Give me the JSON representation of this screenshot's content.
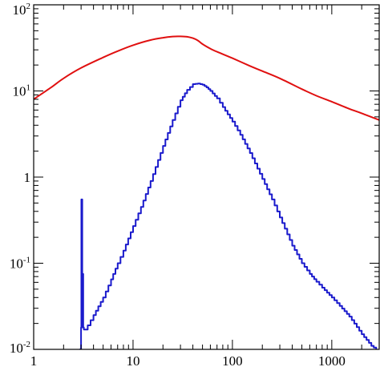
{
  "chart_data": {
    "type": "line",
    "title": "",
    "xlabel": "",
    "ylabel": "",
    "xscale": "log",
    "yscale": "log",
    "xlim": [
      1,
      3000
    ],
    "ylim": [
      0.01,
      100
    ],
    "grid": false,
    "legend": "none",
    "x_tick_labels": [
      {
        "value": 1,
        "label": "1"
      },
      {
        "value": 10,
        "label": "10"
      },
      {
        "value": 100,
        "label": "100"
      },
      {
        "value": 1000,
        "label": "1000"
      }
    ],
    "y_tick_labels": [
      {
        "value": 0.01,
        "base": "10",
        "exp": "-2"
      },
      {
        "value": 0.1,
        "base": "10",
        "exp": "-1"
      },
      {
        "value": 1,
        "base": "1",
        "exp": ""
      },
      {
        "value": 10,
        "base": "10",
        "exp": "1"
      },
      {
        "value": 100,
        "base": "10",
        "exp": "2"
      }
    ],
    "series": [
      {
        "color": "#e01010",
        "style": "smooth",
        "x": [
          1,
          1.5,
          2,
          3,
          5,
          7,
          10,
          15,
          20,
          25,
          30,
          35,
          40,
          45,
          50,
          60,
          70,
          100,
          150,
          200,
          300,
          500,
          700,
          1000,
          1500,
          2000,
          3000
        ],
        "y": [
          8,
          11,
          14,
          18.5,
          24.5,
          29,
          34,
          39,
          41.5,
          42.8,
          43,
          42.5,
          41,
          38.5,
          35,
          31,
          28.5,
          24,
          19.5,
          17,
          14,
          10.5,
          8.8,
          7.5,
          6.2,
          5.5,
          4.6
        ]
      },
      {
        "color": "#1a1acc",
        "style": "step",
        "x": [
          2.9,
          3.0,
          3.02,
          3.08,
          3.1,
          3.15,
          3.2,
          3.3,
          3.5,
          4,
          5,
          6,
          7,
          8,
          10,
          12,
          15,
          20,
          25,
          30,
          35,
          40,
          45,
          50,
          55,
          60,
          70,
          80,
          100,
          120,
          150,
          200,
          250,
          300,
          400,
          500,
          600,
          700,
          800,
          1000,
          1200,
          1500,
          2000,
          2500,
          2800
        ],
        "y": [
          0.01,
          0.018,
          0.55,
          0.018,
          0.075,
          0.018,
          0.017,
          0.017,
          0.019,
          0.025,
          0.04,
          0.065,
          0.1,
          0.14,
          0.27,
          0.45,
          0.9,
          2.3,
          4.6,
          7.8,
          10.3,
          12,
          12.2,
          11.8,
          11,
          10,
          8.2,
          6.5,
          4.4,
          3.1,
          1.9,
          0.95,
          0.55,
          0.34,
          0.16,
          0.1,
          0.075,
          0.061,
          0.052,
          0.04,
          0.032,
          0.024,
          0.015,
          0.011,
          0.01
        ]
      }
    ]
  }
}
